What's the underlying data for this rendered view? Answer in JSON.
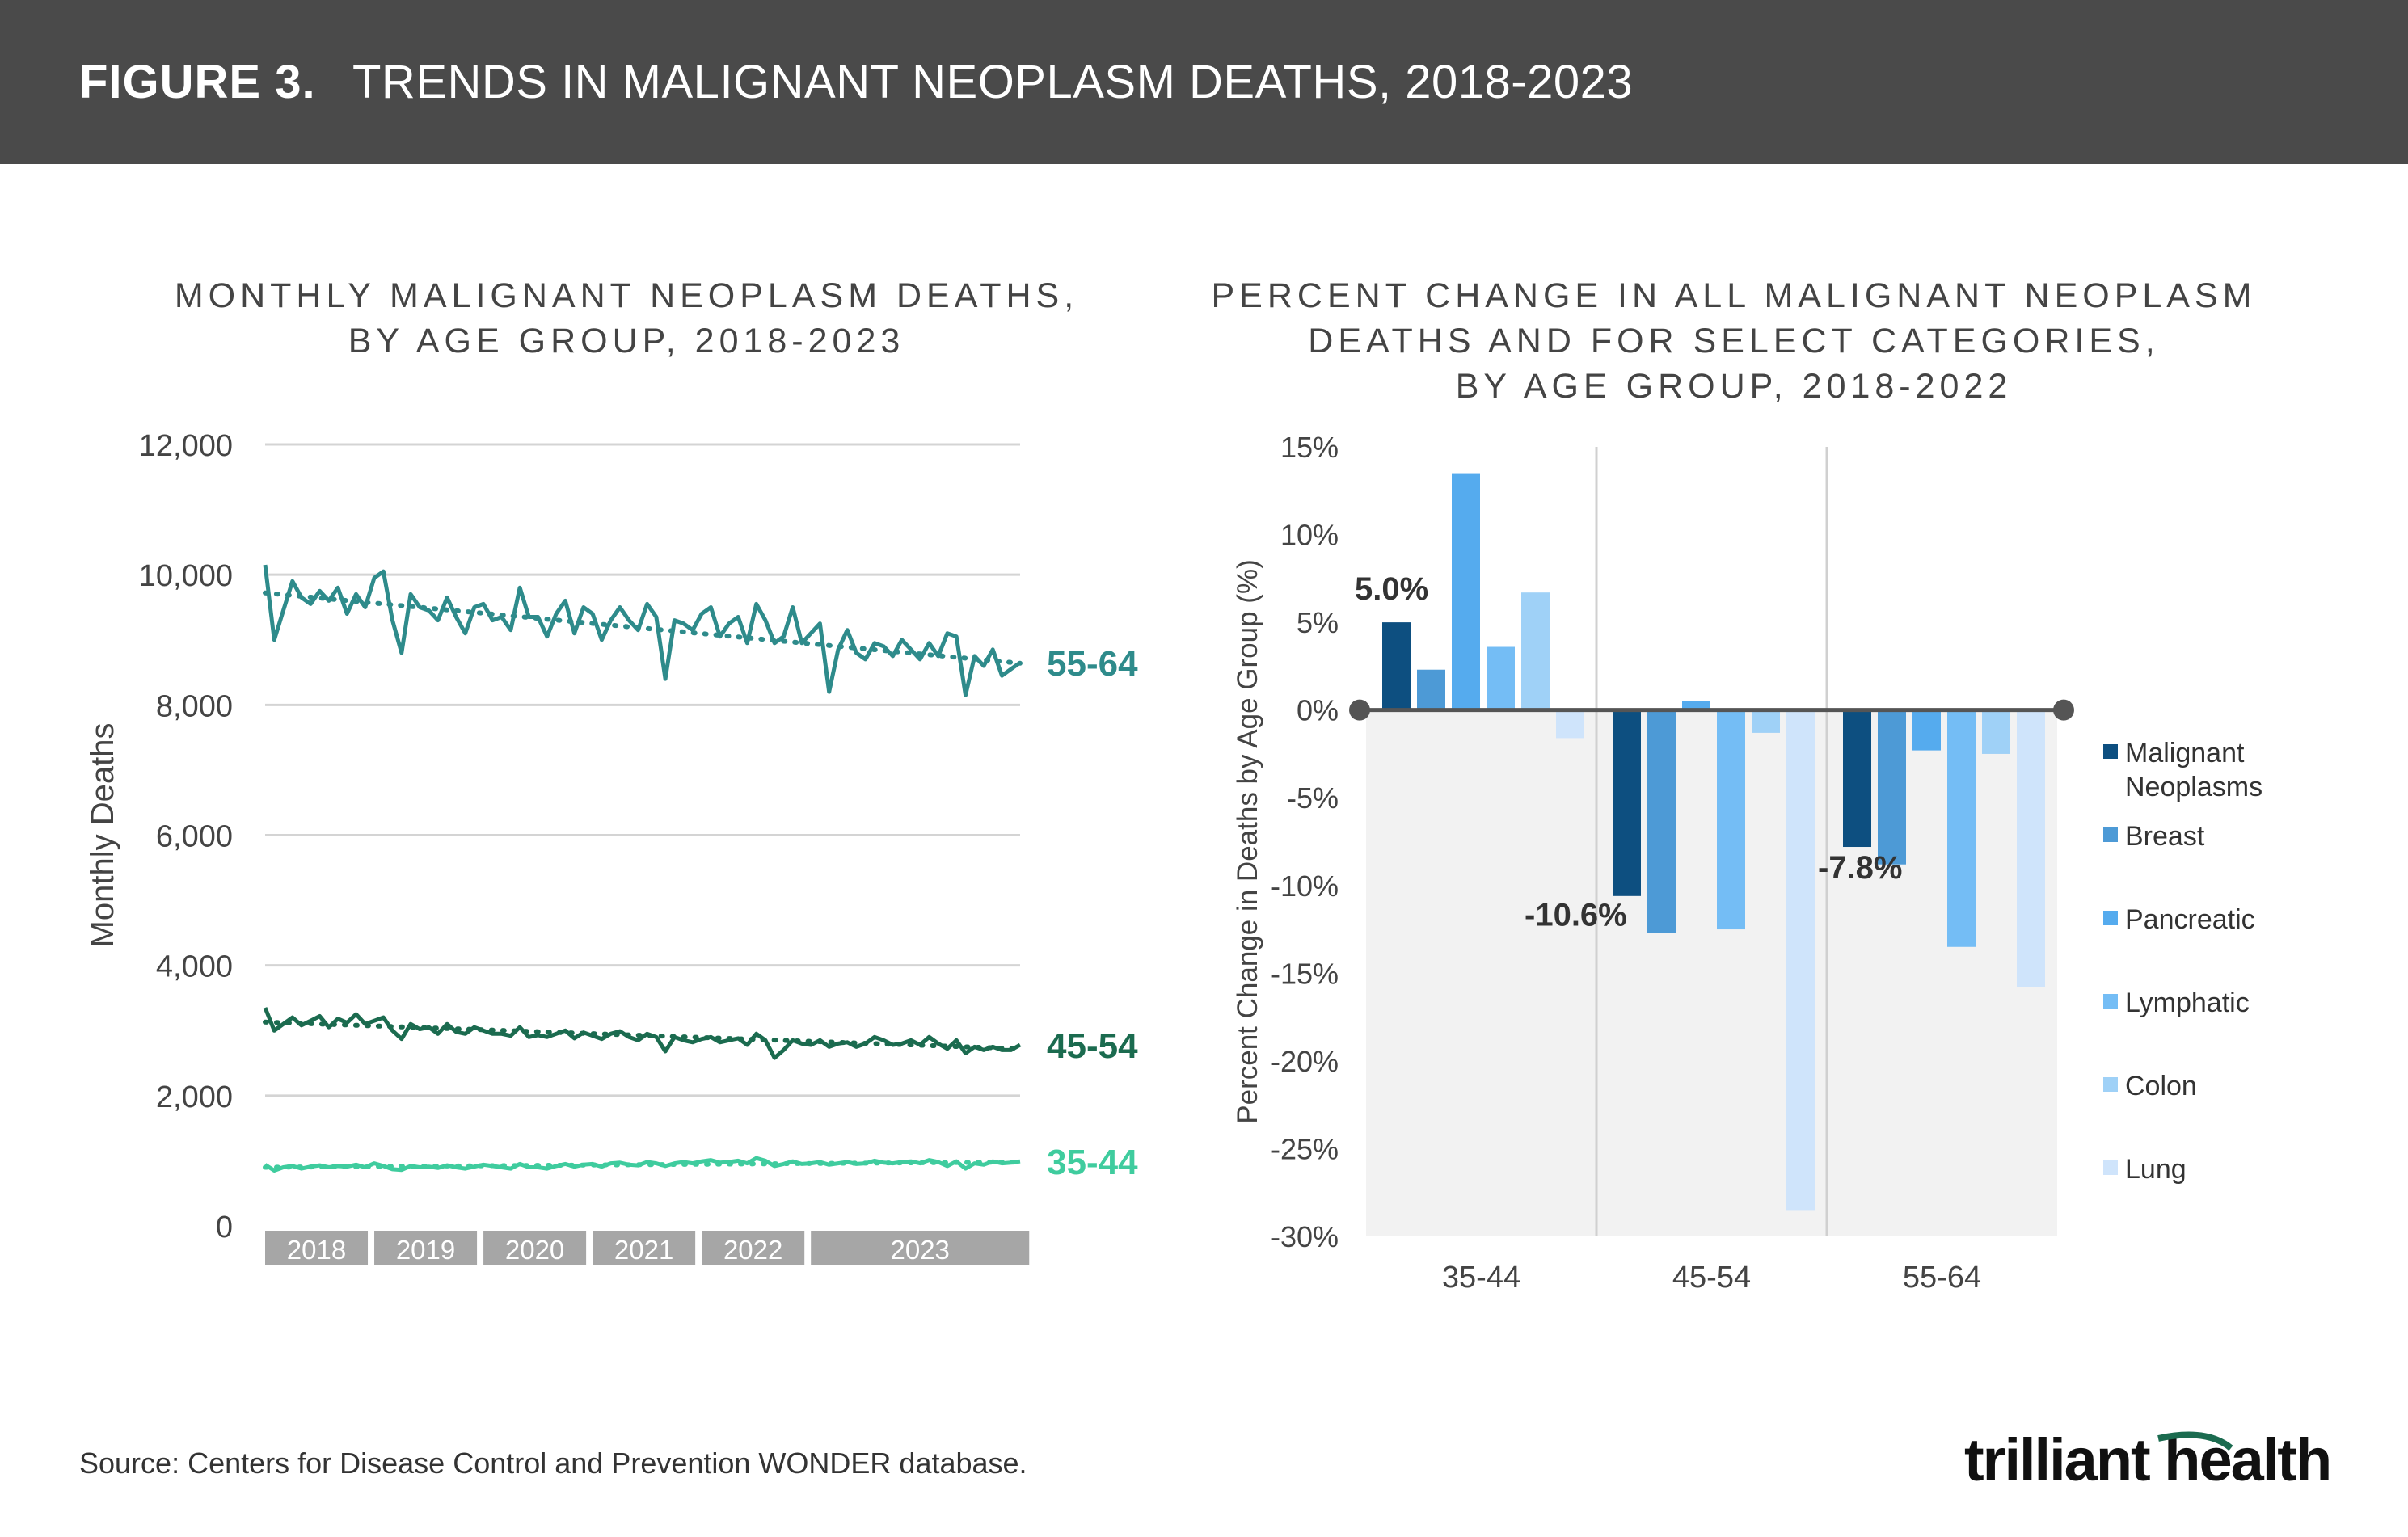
{
  "header": {
    "figure_label": "FIGURE 3.",
    "title": "TRENDS IN MALIGNANT NEOPLASM DEATHS, 2018-2023"
  },
  "colors": {
    "header_bg": "#4a4a4a",
    "series_55_64": "#2e8b8b",
    "series_45_54": "#1b6b4f",
    "series_35_44": "#3fcc9e",
    "malignant": "#0d4f80",
    "breast": "#4d9ad6",
    "pancreatic": "#55abee",
    "lymphatic": "#74bdf5",
    "colon": "#9fd1f7",
    "lung": "#cfe4fb"
  },
  "chart_data": [
    {
      "type": "line",
      "title": "MONTHLY MALIGNANT NEOPLASM DEATHS, BY AGE GROUP, 2018-2023",
      "title_lines": [
        "MONTHLY MALIGNANT NEOPLASM DEATHS,",
        "BY AGE GROUP, 2018-2023"
      ],
      "ylabel": "Monthly Deaths",
      "ylim": [
        0,
        12000
      ],
      "yticks": [
        0,
        2000,
        4000,
        6000,
        8000,
        10000,
        12000
      ],
      "ytick_labels": [
        "0",
        "2,000",
        "4,000",
        "6,000",
        "8,000",
        "10,000",
        "12,000"
      ],
      "x_range": [
        "2018-01",
        "2023-09"
      ],
      "year_labels": [
        "2018",
        "2019",
        "2020",
        "2021",
        "2022",
        "2023"
      ],
      "grid": true,
      "trendline": "dotted",
      "series": [
        {
          "name": "55-64",
          "color_key": "series_55_64",
          "trend_start": 9720,
          "trend_end": 8640,
          "values": [
            10150,
            9000,
            9450,
            9900,
            9650,
            9550,
            9750,
            9600,
            9800,
            9400,
            9700,
            9500,
            9950,
            10050,
            9300,
            8800,
            9700,
            9500,
            9450,
            9300,
            9650,
            9350,
            9100,
            9500,
            9550,
            9300,
            9350,
            9150,
            9800,
            9350,
            9350,
            9050,
            9400,
            9600,
            9100,
            9500,
            9400,
            9000,
            9300,
            9500,
            9300,
            9150,
            9550,
            9350,
            8400,
            9300,
            9250,
            9150,
            9400,
            9500,
            9050,
            9250,
            9350,
            8950,
            9550,
            9300,
            8950,
            9050,
            9500,
            8950,
            9100,
            9250,
            8200,
            8850,
            9150,
            8800,
            8700,
            8950,
            8900,
            8750,
            9000,
            8850,
            8700,
            8950,
            8750,
            9100,
            9050,
            8150,
            8750,
            8600,
            8850,
            8450,
            8550,
            8650
          ]
        },
        {
          "name": "45-54",
          "color_key": "series_45_54",
          "trend_start": 3130,
          "trend_end": 2720,
          "values": [
            3350,
            3000,
            3100,
            3200,
            3080,
            3150,
            3220,
            3050,
            3180,
            3120,
            3250,
            3100,
            3150,
            3200,
            3000,
            2870,
            3100,
            3020,
            3050,
            2950,
            3100,
            2980,
            2950,
            3050,
            3000,
            2950,
            2950,
            2920,
            3050,
            2900,
            2930,
            2900,
            2950,
            3000,
            2880,
            2970,
            2920,
            2870,
            2950,
            2990,
            2900,
            2850,
            2950,
            2900,
            2680,
            2900,
            2850,
            2820,
            2870,
            2900,
            2820,
            2850,
            2880,
            2780,
            2950,
            2850,
            2580,
            2700,
            2850,
            2800,
            2780,
            2850,
            2750,
            2800,
            2820,
            2750,
            2800,
            2900,
            2850,
            2780,
            2800,
            2850,
            2780,
            2900,
            2800,
            2720,
            2850,
            2650,
            2750,
            2700,
            2750,
            2700,
            2700,
            2780
          ]
        },
        {
          "name": "35-44",
          "color_key": "series_35_44",
          "trend_start": 900,
          "trend_end": 980,
          "values": [
            940,
            850,
            900,
            920,
            880,
            910,
            930,
            900,
            920,
            910,
            940,
            900,
            960,
            920,
            870,
            860,
            920,
            900,
            910,
            890,
            930,
            900,
            880,
            910,
            940,
            920,
            900,
            880,
            950,
            900,
            900,
            880,
            920,
            950,
            910,
            940,
            950,
            910,
            960,
            970,
            940,
            930,
            980,
            960,
            920,
            960,
            980,
            960,
            990,
            1010,
            970,
            980,
            1000,
            960,
            1040,
            1000,
            920,
            950,
            990,
            950,
            960,
            980,
            940,
            960,
            980,
            950,
            960,
            1000,
            970,
            960,
            980,
            990,
            960,
            1010,
            980,
            920,
            990,
            880,
            960,
            940,
            990,
            960,
            970,
            990
          ]
        }
      ]
    },
    {
      "type": "bar",
      "title": "PERCENT CHANGE IN ALL MALIGNANT NEOPLASM DEATHS AND FOR SELECT CATEGORIES, BY AGE GROUP, 2018-2022",
      "title_lines": [
        "PERCENT CHANGE IN ALL MALIGNANT NEOPLASM",
        "DEATHS AND FOR SELECT CATEGORIES,",
        "BY AGE GROUP, 2018-2022"
      ],
      "ylabel": "Percent Change in Deaths by Age Group (%)",
      "ylim": [
        -30,
        15
      ],
      "yticks": [
        15,
        10,
        5,
        0,
        -5,
        -10,
        -15,
        -20,
        -25,
        -30
      ],
      "ytick_labels": [
        "15%",
        "10%",
        "5%",
        "0%",
        "-5%",
        "-10%",
        "-15%",
        "-20%",
        "-25%",
        "-30%"
      ],
      "categories": [
        "35-44",
        "45-54",
        "55-64"
      ],
      "legend_position": "right",
      "series": [
        {
          "name": "Malignant Neoplasms",
          "legend_lines": [
            "Malignant",
            "Neoplasms"
          ],
          "color_key": "malignant",
          "values": [
            5.0,
            -10.6,
            -7.8
          ]
        },
        {
          "name": "Breast",
          "legend_lines": [
            "Breast"
          ],
          "color_key": "breast",
          "values": [
            2.3,
            -12.7,
            -8.8
          ]
        },
        {
          "name": "Pancreatic",
          "legend_lines": [
            "Pancreatic"
          ],
          "color_key": "pancreatic",
          "values": [
            13.5,
            0.5,
            -2.3
          ]
        },
        {
          "name": "Lymphatic",
          "legend_lines": [
            "Lymphatic"
          ],
          "color_key": "lymphatic",
          "values": [
            3.6,
            -12.5,
            -13.5
          ]
        },
        {
          "name": "Colon",
          "legend_lines": [
            "Colon"
          ],
          "color_key": "colon",
          "values": [
            6.7,
            -1.3,
            -2.5
          ]
        },
        {
          "name": "Lung",
          "legend_lines": [
            "Lung"
          ],
          "color_key": "lung",
          "values": [
            -1.6,
            -28.5,
            -15.8
          ]
        }
      ],
      "annotations": [
        "5.0%",
        "-10.6%",
        "-7.8%"
      ]
    }
  ],
  "footer": {
    "source": "Source: Centers for Disease Control and Prevention WONDER database.",
    "logo_text": "trilliant health"
  }
}
